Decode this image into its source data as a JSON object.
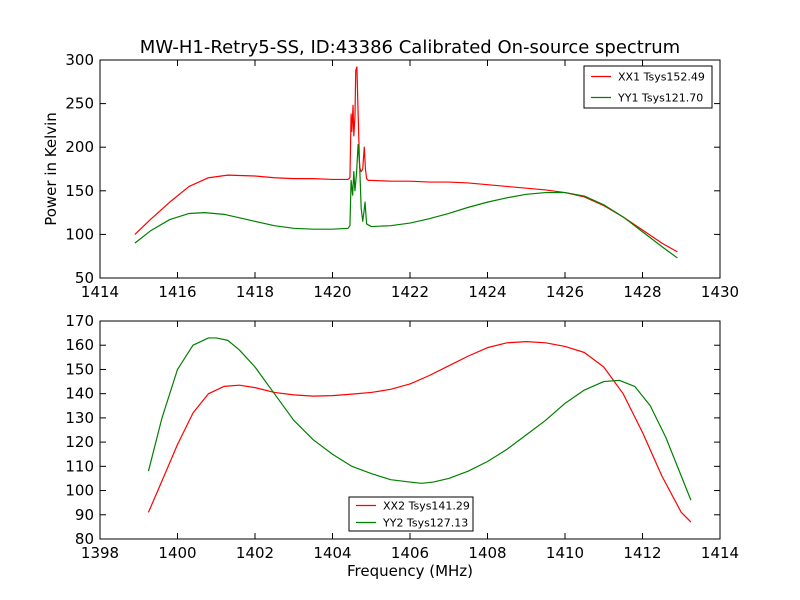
{
  "title": "MW-H1-Retry5-SS, ID:43386 Calibrated On-source spectrum",
  "chart_data": [
    {
      "type": "line",
      "ylabel": "Power in Kelvin",
      "xlabel": "",
      "xlim": [
        1414,
        1430
      ],
      "ylim": [
        50,
        300
      ],
      "xticks": [
        1414,
        1416,
        1418,
        1420,
        1422,
        1424,
        1426,
        1428,
        1430
      ],
      "yticks": [
        50,
        100,
        150,
        200,
        250,
        300
      ],
      "legend_position": "top-right",
      "series": [
        {
          "name": "XX1 Tsys152.49",
          "color": "#ff0000",
          "x": [
            1414.9,
            1415.3,
            1415.8,
            1416.3,
            1416.8,
            1417.3,
            1418.0,
            1418.5,
            1419.0,
            1419.5,
            1420.0,
            1420.4,
            1420.45,
            1420.48,
            1420.5,
            1420.53,
            1420.55,
            1420.58,
            1420.6,
            1420.63,
            1420.66,
            1420.7,
            1420.74,
            1420.78,
            1420.82,
            1420.85,
            1420.88,
            1420.92,
            1421.0,
            1421.5,
            1422.0,
            1422.5,
            1423.0,
            1423.5,
            1424.0,
            1424.5,
            1425.0,
            1425.5,
            1426.0,
            1426.5,
            1427.0,
            1427.5,
            1428.0,
            1428.5,
            1428.9
          ],
          "y": [
            100,
            117,
            137,
            155,
            165,
            168,
            167,
            165,
            164,
            164,
            163,
            163,
            165,
            238,
            218,
            248,
            213,
            235,
            288,
            292,
            240,
            177,
            172,
            175,
            200,
            175,
            164,
            162,
            162,
            161,
            161,
            160,
            160,
            159,
            157,
            155,
            153,
            151,
            148,
            143,
            133,
            120,
            105,
            90,
            80
          ]
        },
        {
          "name": "YY1 Tsys121.70",
          "color": "#008000",
          "x": [
            1414.9,
            1415.3,
            1415.8,
            1416.3,
            1416.7,
            1417.2,
            1417.8,
            1418.5,
            1419.0,
            1419.5,
            1420.0,
            1420.4,
            1420.45,
            1420.48,
            1420.52,
            1420.55,
            1420.58,
            1420.62,
            1420.66,
            1420.7,
            1420.74,
            1420.78,
            1420.81,
            1420.84,
            1420.88,
            1421.0,
            1421.5,
            1422.0,
            1422.5,
            1423.0,
            1423.5,
            1424.0,
            1424.5,
            1425.0,
            1425.5,
            1426.0,
            1426.5,
            1427.0,
            1427.5,
            1428.0,
            1428.5,
            1428.9
          ],
          "y": [
            90,
            104,
            117,
            124,
            125,
            123,
            117,
            110,
            107,
            106,
            106,
            107,
            110,
            162,
            145,
            172,
            150,
            170,
            203,
            180,
            130,
            115,
            125,
            137,
            112,
            109,
            110,
            113,
            118,
            124,
            131,
            137,
            142,
            146,
            148,
            148,
            144,
            134,
            120,
            103,
            86,
            73
          ]
        }
      ]
    },
    {
      "type": "line",
      "ylabel": "",
      "xlabel": "Frequency (MHz)",
      "xlim": [
        1398,
        1414
      ],
      "ylim": [
        80,
        170
      ],
      "xticks": [
        1398,
        1400,
        1402,
        1404,
        1406,
        1408,
        1410,
        1412,
        1414
      ],
      "yticks": [
        80,
        90,
        100,
        110,
        120,
        130,
        140,
        150,
        160,
        170
      ],
      "legend_position": "bottom-center",
      "series": [
        {
          "name": "XX2 Tsys141.29",
          "color": "#ff0000",
          "x": [
            1399.25,
            1399.6,
            1400.0,
            1400.4,
            1400.8,
            1401.2,
            1401.6,
            1402.0,
            1402.5,
            1403.0,
            1403.5,
            1404.0,
            1404.5,
            1405.0,
            1405.5,
            1406.0,
            1406.5,
            1407.0,
            1407.5,
            1408.0,
            1408.5,
            1409.0,
            1409.5,
            1410.0,
            1410.5,
            1411.0,
            1411.5,
            1412.0,
            1412.5,
            1413.0,
            1413.25
          ],
          "y": [
            91,
            104,
            119,
            132,
            140,
            143,
            143.5,
            142.5,
            140.5,
            139.5,
            139,
            139.2,
            139.8,
            140.5,
            141.8,
            144,
            147.5,
            151.5,
            155.5,
            159,
            161,
            161.5,
            161,
            159.5,
            157,
            151,
            140,
            124,
            106,
            91,
            87
          ]
        },
        {
          "name": "YY2 Tsys127.13",
          "color": "#008000",
          "x": [
            1399.25,
            1399.6,
            1400.0,
            1400.4,
            1400.8,
            1401.0,
            1401.3,
            1401.6,
            1402.0,
            1402.5,
            1403.0,
            1403.5,
            1404.0,
            1404.5,
            1405.0,
            1405.5,
            1406.0,
            1406.3,
            1406.6,
            1407.0,
            1407.5,
            1408.0,
            1408.5,
            1409.0,
            1409.5,
            1410.0,
            1410.5,
            1411.0,
            1411.4,
            1411.8,
            1412.2,
            1412.6,
            1413.0,
            1413.25
          ],
          "y": [
            108,
            130,
            150,
            160,
            163,
            163,
            162,
            158,
            151,
            140,
            129,
            121,
            115,
            110,
            107,
            104.5,
            103.5,
            103,
            103.5,
            105,
            108,
            112,
            117,
            123,
            129,
            136,
            141.5,
            145,
            145.5,
            143,
            135,
            122,
            106,
            96
          ]
        }
      ]
    }
  ]
}
